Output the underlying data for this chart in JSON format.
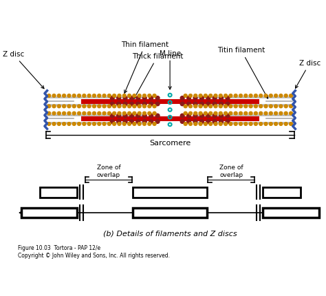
{
  "bg_color": "#ffffff",
  "fig_width": 4.74,
  "fig_height": 4.3,
  "title": "(b) Details of filaments and Z discs",
  "caption_line1": "Figure 10.03  Tortora - PAP 12/e",
  "caption_line2": "Copyright © John Wiley and Sons, Inc. All rights reserved.",
  "sarcomere_label": "Sarcomere",
  "labels": {
    "z_disc_left": "Z disc",
    "z_disc_right": "Z disc",
    "thin_filament": "Thin filament",
    "thick_filament": "Thick filament",
    "m_line": "M line",
    "titin_filament": "Titin filament"
  },
  "zone_overlap_label": "Zone of\noverlap",
  "colors": {
    "thick_filament": "#cc0000",
    "thin_filament": "#c8c8c8",
    "z_disc": "#3355aa",
    "titin": "#dddddd",
    "gold_actin": "#cc8800",
    "m_line_color": "#00aaaa",
    "black": "#000000",
    "dark_red": "#8b1a1a"
  }
}
